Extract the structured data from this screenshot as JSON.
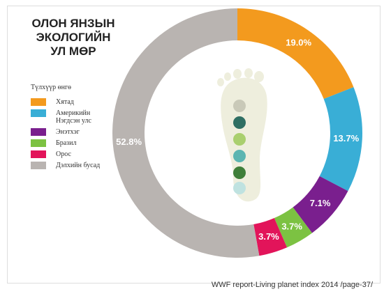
{
  "chart_data": {
    "type": "donut",
    "title": "ОЛОН ЯНЗЫН ЭКОЛОГИЙН УЛ МӨР",
    "legend_title": "Түлхүүр өнгө",
    "categories": [
      "Хятад",
      "Америкийн Нэгдсэн улс",
      "Энэтхэг",
      "Бразил",
      "Орос",
      "Дэлхийн бусад"
    ],
    "values": [
      19.0,
      13.7,
      7.1,
      3.7,
      3.7,
      52.8
    ],
    "value_labels": [
      "19.0%",
      "13.7%",
      "7.1%",
      "3.7%",
      "3.7%",
      "52.8%"
    ],
    "colors": [
      "#f39a1e",
      "#39aed6",
      "#7a1f8e",
      "#7cc242",
      "#e2145a",
      "#b9b4b1"
    ],
    "legend": "left",
    "source": "WWF report-Living planet index 2014 /page-37/"
  }
}
